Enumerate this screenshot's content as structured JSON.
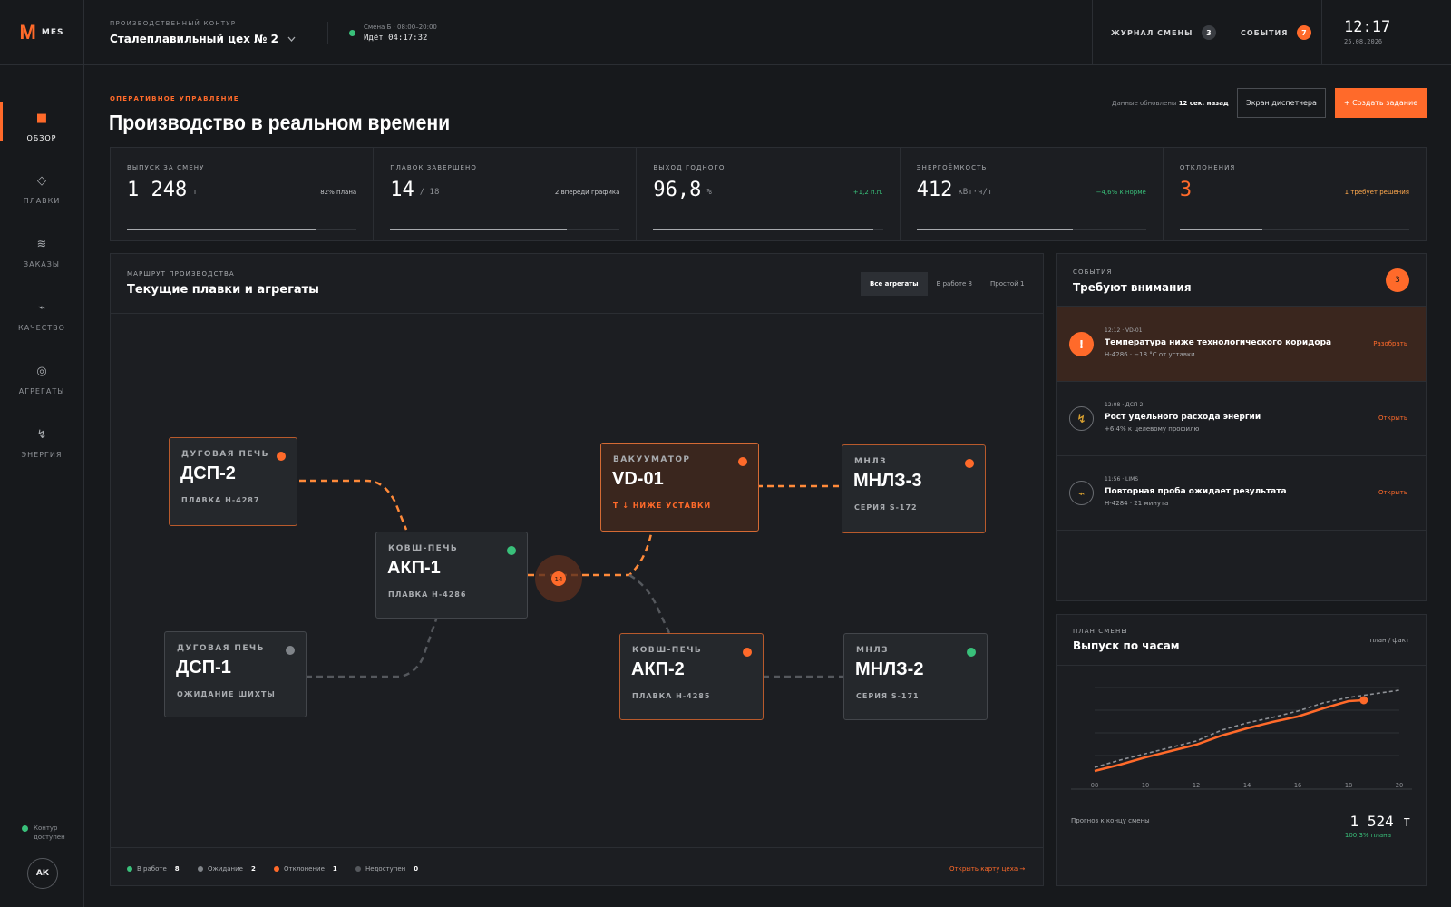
{
  "app": {
    "logo_letter": "M",
    "logo_text": "MES"
  },
  "sidebar": {
    "items": [
      {
        "label": "ОБЗОР",
        "icon": "grid-icon",
        "glyph": "■"
      },
      {
        "label": "ПЛАВКИ",
        "icon": "diamond-icon",
        "glyph": "◇"
      },
      {
        "label": "ЗАКАЗЫ",
        "icon": "waves-icon",
        "glyph": "≋"
      },
      {
        "label": "КАЧЕСТВО",
        "icon": "signal-icon",
        "glyph": "⌁"
      },
      {
        "label": "АГРЕГАТЫ",
        "icon": "target-icon",
        "glyph": "◎"
      },
      {
        "label": "ЭНЕРГИЯ",
        "icon": "lightning-icon",
        "glyph": "↯"
      }
    ],
    "status_line1": "Контур",
    "status_line2": "доступен",
    "avatar": "АК"
  },
  "topbar": {
    "context_label": "ПРОИЗВОДСТВЕННЫЙ КОНТУР",
    "context_value": "Сталеплавильный цех № 2",
    "shift_line1": "Смена Б · 08:00–20:00",
    "shift_line2": "Идёт 04:17:32",
    "journal_label": "ЖУРНАЛ СМЕНЫ",
    "journal_count": "3",
    "events_label": "СОБЫТИЯ",
    "events_count": "7",
    "time": "12:17",
    "date": "25.08.2026"
  },
  "header": {
    "section": "ОПЕРАТИВНОЕ УПРАВЛЕНИЕ",
    "title": "Производство в реальном времени",
    "updated_prefix": "Данные обновлены",
    "updated_value": "12 сек. назад",
    "dispatcher_button": "Экран диспетчера",
    "create_button": "+ Создать задание"
  },
  "kpis": [
    {
      "label": "ВЫПУСК ЗА СМЕНУ",
      "value": "1 248",
      "unit": "т",
      "note": "82% плана",
      "note_color": "#c6c8cb",
      "value_color": "#ffffff",
      "progress": 0.82
    },
    {
      "label": "ПЛАВОК ЗАВЕРШЕНО",
      "value": "14",
      "unit": "/ 18",
      "note": "2 впереди графика",
      "note_color": "#c6c8cb",
      "value_color": "#ffffff",
      "progress": 0.77
    },
    {
      "label": "ВЫХОД ГОДНОГО",
      "value": "96,8",
      "unit": "%",
      "note": "+1,2 п.п.",
      "note_color": "#39c07a",
      "value_color": "#ffffff",
      "progress": 0.96
    },
    {
      "label": "ЭНЕРГОЁМКОСТЬ",
      "value": "412",
      "unit": "кВт·ч/т",
      "note": "−4,6% к норме",
      "note_color": "#39c07a",
      "value_color": "#ffffff",
      "progress": 0.68
    },
    {
      "label": "ОТКЛОНЕНИЯ",
      "value": "3",
      "unit": "",
      "note": "1 требует решения",
      "note_color": "#ffa94d",
      "value_color": "#ff6a2a",
      "progress": 0.36
    }
  ],
  "route": {
    "label": "МАРШРУТ ПРОИЗВОДСТВА",
    "title": "Текущие плавки и агрегаты",
    "tabs": [
      "Все агрегаты",
      "В работе 8",
      "Простой 1"
    ],
    "junction_label": "14",
    "nodes": [
      {
        "type": "ДУГОВАЯ ПЕЧЬ",
        "name": "ДСП-2",
        "sub": "ПЛАВКА Н-4287",
        "status": "orange"
      },
      {
        "type": "КОВШ-ПЕЧЬ",
        "name": "АКП-1",
        "sub": "ПЛАВКА Н-4286",
        "status": "green"
      },
      {
        "type": "ДУГОВАЯ ПЕЧЬ",
        "name": "ДСП-1",
        "sub": "ОЖИДАНИЕ ШИХТЫ",
        "status": "gray"
      },
      {
        "type": "ВАКУУМАТОР",
        "name": "VD-01",
        "sub": "T ↓ НИЖЕ УСТАВКИ",
        "status": "orange"
      },
      {
        "type": "МНЛЗ",
        "name": "МНЛЗ-3",
        "sub": "СЕРИЯ S-172",
        "status": "orange"
      },
      {
        "type": "КОВШ-ПЕЧЬ",
        "name": "АКП-2",
        "sub": "ПЛАВКА Н-4285",
        "status": "orange"
      },
      {
        "type": "МНЛЗ",
        "name": "МНЛЗ-2",
        "sub": "СЕРИЯ S-171",
        "status": "green"
      }
    ],
    "legend": [
      {
        "label": "В работе",
        "count": "8",
        "color": "green"
      },
      {
        "label": "Ожидание",
        "count": "2",
        "color": "gray"
      },
      {
        "label": "Отклонение",
        "count": "1",
        "color": "orange"
      },
      {
        "label": "Недоступен",
        "count": "0",
        "color": "dark"
      }
    ],
    "map_link": "Открыть карту цеха →"
  },
  "events": {
    "label": "СОБЫТИЯ",
    "title": "Требуют внимания",
    "count": "3",
    "items": [
      {
        "meta": "12:12 · VD-01",
        "title": "Температура ниже технологического коридора",
        "sub": "Н-4286 · −18 °C от уставки",
        "action": "Разобрать",
        "icon": "alert-icon",
        "glyph": "!"
      },
      {
        "meta": "12:08 · ДСП-2",
        "title": "Рост удельного расхода энергии",
        "sub": "+6,4% к целевому профилю",
        "action": "Открыть",
        "icon": "lightning-icon",
        "glyph": "↯"
      },
      {
        "meta": "11:56 · LIMS",
        "title": "Повторная проба ожидает результата",
        "sub": "Н-4284 · 21 минута",
        "action": "Открыть",
        "icon": "signal-icon",
        "glyph": "⌁"
      }
    ]
  },
  "plan": {
    "label": "ПЛАН СМЕНЫ",
    "title": "Выпуск по часам",
    "mode": "план / факт",
    "forecast_label": "Прогноз к концу смены",
    "forecast_value": "1 524",
    "forecast_unit": "т",
    "forecast_pct": "100,3% плана"
  },
  "chart_data": {
    "type": "line",
    "x_ticks": [
      "08",
      "10",
      "12",
      "14",
      "16",
      "18",
      "20"
    ],
    "x_range": [
      8,
      20
    ],
    "y_range": [
      0,
      1
    ],
    "series": [
      {
        "key": "plan",
        "style": "dashed",
        "color": "#8e9196",
        "x": [
          8,
          9,
          10,
          11,
          12,
          13,
          14,
          15,
          16,
          17,
          18,
          19,
          20
        ],
        "y": [
          0.12,
          0.2,
          0.27,
          0.34,
          0.41,
          0.53,
          0.61,
          0.67,
          0.74,
          0.83,
          0.89,
          0.93,
          0.97
        ]
      },
      {
        "key": "fact",
        "style": "solid",
        "color": "#ff6a2a",
        "x": [
          8,
          9,
          10,
          11,
          12,
          13,
          14,
          15,
          16,
          17,
          18,
          18.6
        ],
        "y": [
          0.08,
          0.15,
          0.23,
          0.3,
          0.37,
          0.47,
          0.55,
          0.62,
          0.68,
          0.77,
          0.85,
          0.86
        ]
      }
    ]
  }
}
